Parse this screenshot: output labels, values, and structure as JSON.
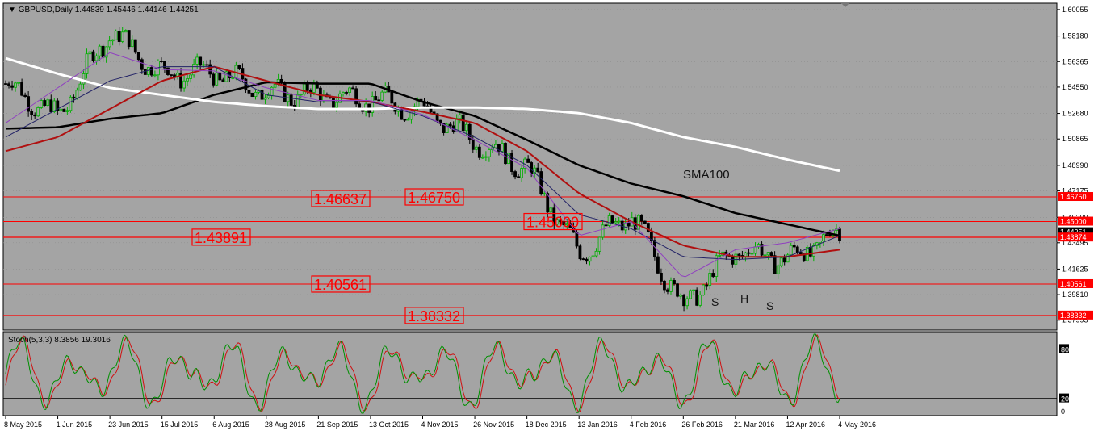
{
  "symbol_title": "GBPUSD,Daily",
  "ohlc_text": "1.44839 1.45446 1.44146 1.44251",
  "indicator_title": "Stoch(5,3,3) 8.3856 19.3016",
  "colors": {
    "plot_bg": "#a4a4a4",
    "grid": "#8e8e8e",
    "bull_candle": "#00b000",
    "bear_candle": "#000000",
    "sma_black": "#000000",
    "sma_white": "#ffffff",
    "ma_red": "#b01010",
    "ma_blue": "#222266",
    "ma_purple": "#9040c0",
    "level_line": "#ff0000",
    "label_box": "#ff0000",
    "stoch_main": "#009000",
    "stoch_signal": "#d01010"
  },
  "price_axis_ticks": [
    "1.60055",
    "1.58180",
    "1.56365",
    "1.54550",
    "1.52680",
    "1.50865",
    "1.48990",
    "1.47175",
    "1.45300",
    "1.43495",
    "1.41625",
    "1.39810",
    "1.37995"
  ],
  "current_price_label": "1.44251",
  "right_tags": [
    {
      "text": "1.46750",
      "price": 1.4675
    },
    {
      "text": "1.45000",
      "price": 1.45
    },
    {
      "text": "1.43874",
      "price": 1.43874
    },
    {
      "text": "1.40561",
      "price": 1.40561
    },
    {
      "text": "1.38332",
      "price": 1.38332
    }
  ],
  "level_labels": [
    {
      "text": "1.46637",
      "price": 1.46637,
      "at": "Sep 2015"
    },
    {
      "text": "1.46750",
      "price": 1.4675,
      "at": "Nov 2015"
    },
    {
      "text": "1.45000",
      "price": 1.45,
      "at": "Jan 2016"
    },
    {
      "text": "1.43891",
      "price": 1.43891,
      "at": "Jul 2015"
    },
    {
      "text": "1.40561",
      "price": 1.40561,
      "at": "Sep 2015"
    },
    {
      "text": "1.38332",
      "price": 1.38332,
      "at": "Nov 2015"
    }
  ],
  "annotations": {
    "sma100": "SMA100",
    "left_shoulder": "S",
    "head": "H",
    "right_shoulder": "S"
  },
  "stoch_axis_ticks": [
    "80",
    "20",
    "0"
  ],
  "date_labels": [
    "8 May 2015",
    "1 Jun 2015",
    "23 Jun 2015",
    "15 Jul 2015",
    "6 Aug 2015",
    "28 Aug 2015",
    "21 Sep 2015",
    "13 Oct 2015",
    "4 Nov 2015",
    "26 Nov 2015",
    "18 Dec 2015",
    "13 Jan 2016",
    "4 Feb 2016",
    "26 Feb 2016",
    "21 Mar 2016",
    "12 Apr 2016",
    "4 May 2016"
  ],
  "chart_data": {
    "type": "candlestick",
    "symbol": "GBPUSD",
    "timeframe": "Daily",
    "ylim": [
      1.3735,
      1.6045
    ],
    "stoch_ylim": [
      0,
      100
    ],
    "stoch_levels": [
      20,
      80
    ],
    "horizontal_levels": [
      1.4675,
      1.45,
      1.43874,
      1.40561,
      1.38332
    ],
    "close_keypoints": [
      {
        "date": "8 May 2015",
        "price": 1.548
      },
      {
        "date": "1 Jun 2015",
        "price": 1.524
      },
      {
        "date": "23 Jun 2015",
        "price": 1.585
      },
      {
        "date": "15 Jul 2015",
        "price": 1.555
      },
      {
        "date": "6 Aug 2015",
        "price": 1.556
      },
      {
        "date": "28 Aug 2015",
        "price": 1.542
      },
      {
        "date": "21 Sep 2015",
        "price": 1.54
      },
      {
        "date": "13 Oct 2015",
        "price": 1.537
      },
      {
        "date": "4 Nov 2015",
        "price": 1.53
      },
      {
        "date": "26 Nov 2015",
        "price": 1.508
      },
      {
        "date": "18 Dec 2015",
        "price": 1.488
      },
      {
        "date": "13 Jan 2016",
        "price": 1.427
      },
      {
        "date": "4 Feb 2016",
        "price": 1.455
      },
      {
        "date": "26 Feb 2016",
        "price": 1.39
      },
      {
        "date": "21 Mar 2016",
        "price": 1.43
      },
      {
        "date": "12 Apr 2016",
        "price": 1.423
      },
      {
        "date": "4 May 2016",
        "price": 1.44251
      }
    ],
    "moving_averages": [
      {
        "name": "SMA100",
        "color": "black",
        "keypoints": [
          1.516,
          1.517,
          1.523,
          1.527,
          1.54,
          1.549,
          1.548,
          1.548,
          1.535,
          1.525,
          1.508,
          1.49,
          1.477,
          1.468,
          1.456,
          1.448,
          1.44
        ]
      },
      {
        "name": "",
        "color": "white",
        "keypoints": [
          1.566,
          1.555,
          1.545,
          1.54,
          1.535,
          1.532,
          1.53,
          1.53,
          1.531,
          1.531,
          1.53,
          1.527,
          1.52,
          1.51,
          1.503,
          1.494,
          1.486
        ]
      },
      {
        "name": "",
        "color": "red",
        "keypoints": [
          1.5,
          1.51,
          1.53,
          1.55,
          1.56,
          1.55,
          1.54,
          1.535,
          1.528,
          1.52,
          1.5,
          1.47,
          1.45,
          1.433,
          1.425,
          1.425,
          1.43
        ]
      },
      {
        "name": "",
        "color": "blue",
        "keypoints": [
          1.51,
          1.53,
          1.55,
          1.56,
          1.56,
          1.54,
          1.535,
          1.535,
          1.525,
          1.51,
          1.49,
          1.455,
          1.445,
          1.425,
          1.423,
          1.425,
          1.44
        ]
      },
      {
        "name": "",
        "color": "purple",
        "keypoints": [
          1.52,
          1.545,
          1.57,
          1.558,
          1.557,
          1.545,
          1.536,
          1.536,
          1.526,
          1.508,
          1.488,
          1.44,
          1.45,
          1.41,
          1.43,
          1.435,
          1.445
        ]
      }
    ]
  }
}
